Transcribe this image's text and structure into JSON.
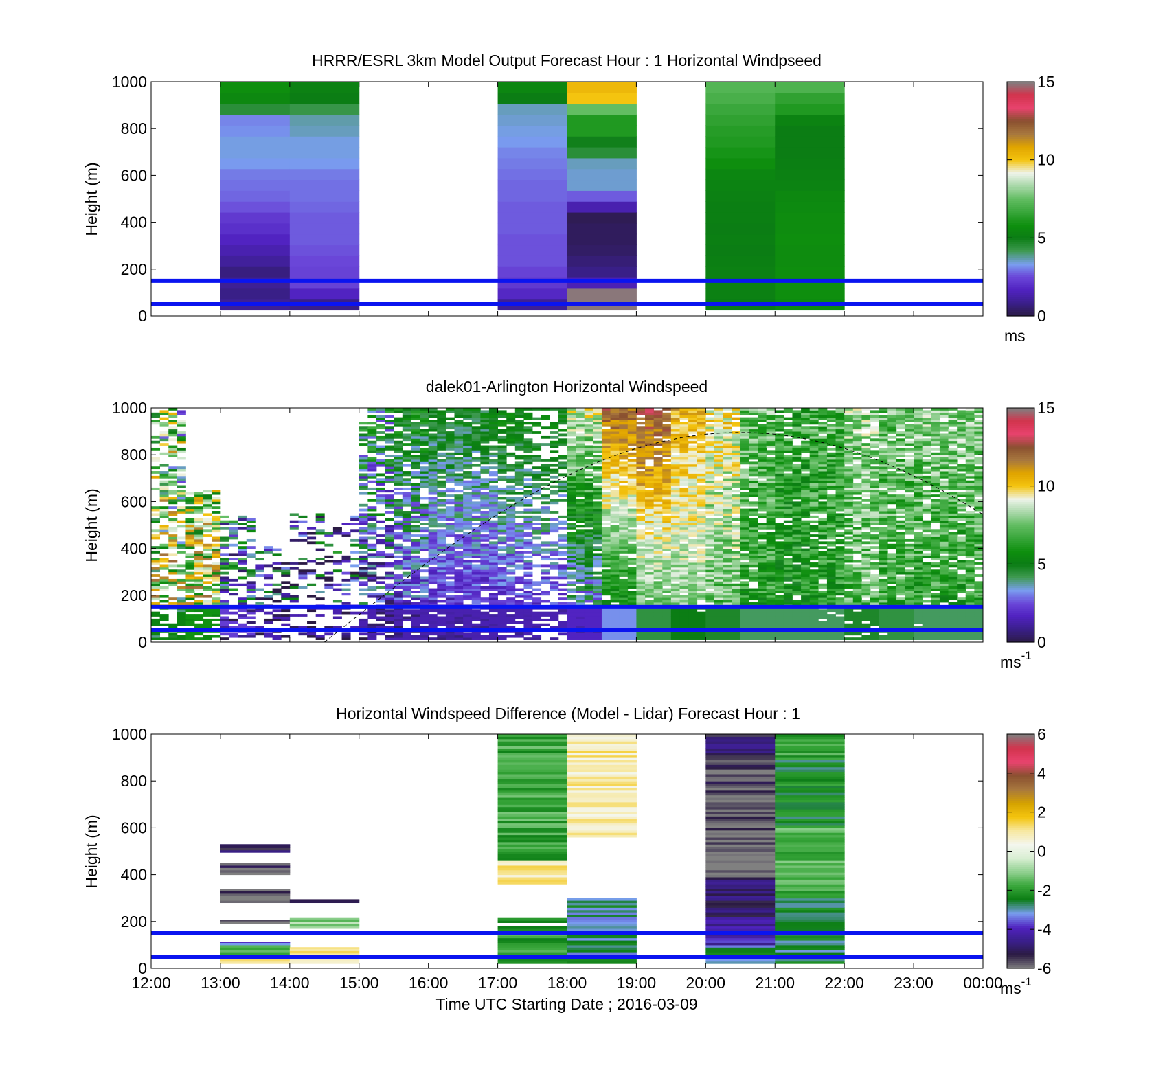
{
  "colormaps": {
    "speed": [
      "#2b1b43",
      "#3a1f8a",
      "#5022c0",
      "#6a46d8",
      "#7a9ef0",
      "#3f9a52",
      "#0b7d14",
      "#0e8f0e",
      "#38a63a",
      "#62bd62",
      "#a8d8a8",
      "#eef3ea",
      "#f4c40f",
      "#e0a400",
      "#a8783e",
      "#8a5030",
      "#e8436e",
      "#d2344d",
      "#808080"
    ],
    "diff": [
      "#808080",
      "#2b1b43",
      "#3a1f8a",
      "#5022c0",
      "#7a9ef0",
      "#0b7d14",
      "#38a63a",
      "#8fd08f",
      "#d8eed2",
      "#f4f6ee",
      "#f7e8a0",
      "#f4c40f",
      "#d5a200",
      "#a8783e",
      "#8a5030",
      "#e8436e",
      "#d2344d",
      "#808080"
    ]
  },
  "x_axis": {
    "ticks": [
      "12:00",
      "13:00",
      "14:00",
      "15:00",
      "16:00",
      "17:00",
      "18:00",
      "19:00",
      "20:00",
      "21:00",
      "22:00",
      "23:00",
      "00:00"
    ],
    "label": "Time UTC  Starting Date ; 2016-03-09"
  },
  "chart_data": [
    {
      "type": "heatmap",
      "title": "HRRR/ESRL 3km Model Output   Forecast Hour : 1 Horizontal Windpseed",
      "ylabel": "Height (m)",
      "ylim": [
        0,
        1000
      ],
      "yticks": [
        "0",
        "200",
        "400",
        "600",
        "800",
        "1000"
      ],
      "clim": [
        0,
        15
      ],
      "cticks": [
        "0",
        "5",
        "10",
        "15"
      ],
      "cunit": "ms",
      "cunit_sup": "",
      "reference_lines_m": [
        50,
        150
      ],
      "columns": [
        {
          "x_start": 13.0,
          "x_end": 14.0,
          "values_bottom_to_top": [
            1.0,
            0.8,
            1.0,
            0.7,
            1.1,
            1.4,
            1.7,
            2.0,
            2.2,
            2.6,
            2.8,
            2.9,
            3.0,
            3.3,
            3.4,
            3.4,
            3.2,
            3.1,
            4.5,
            5.5,
            5.8
          ]
        },
        {
          "x_start": 14.0,
          "x_end": 15.0,
          "values_bottom_to_top": [
            0.8,
            1.7,
            2.4,
            2.4,
            2.5,
            2.6,
            2.7,
            2.7,
            2.7,
            2.8,
            2.9,
            2.9,
            3.0,
            3.3,
            3.4,
            3.4,
            3.6,
            3.7,
            4.3,
            5.0,
            5.2
          ]
        },
        {
          "x_start": 17.0,
          "x_end": 18.0,
          "values_bottom_to_top": [
            1.0,
            1.8,
            2.2,
            2.4,
            2.6,
            2.6,
            2.6,
            2.7,
            2.7,
            2.7,
            2.8,
            2.8,
            2.9,
            3.0,
            3.1,
            3.3,
            3.4,
            3.5,
            3.6,
            5.0,
            5.4
          ]
        },
        {
          "x_start": 18.0,
          "x_end": 19.0,
          "values_bottom_to_top": [
            14.9,
            14.9,
            1.5,
            0.8,
            0.6,
            0.4,
            0.3,
            0.3,
            0.2,
            1.4,
            2.7,
            3.5,
            3.5,
            3.6,
            4.5,
            4.9,
            6.2,
            6.2,
            7.5,
            10.0,
            10.3
          ]
        },
        {
          "x_start": 20.0,
          "x_end": 21.0,
          "values_bottom_to_top": [
            5.0,
            5.2,
            5.2,
            5.2,
            5.1,
            5.0,
            5.1,
            5.0,
            5.1,
            5.1,
            5.2,
            5.3,
            5.4,
            5.8,
            6.0,
            6.2,
            6.3,
            6.5,
            6.7,
            7.0,
            7.2
          ]
        },
        {
          "x_start": 21.0,
          "x_end": 22.0,
          "values_bottom_to_top": [
            5.6,
            5.8,
            5.8,
            5.8,
            5.7,
            5.7,
            5.8,
            5.7,
            5.7,
            5.6,
            5.5,
            5.3,
            5.2,
            5.1,
            5.0,
            5.0,
            5.0,
            5.3,
            6.2,
            6.5,
            7.1
          ]
        }
      ]
    },
    {
      "type": "heatmap",
      "title": "dalek01-Arlington  Horizontal Windspeed",
      "ylabel": "Height (m)",
      "ylim": [
        0,
        1000
      ],
      "yticks": [
        "0",
        "200",
        "400",
        "600",
        "800",
        "1000"
      ],
      "clim": [
        0,
        15
      ],
      "cticks": [
        "0",
        "5",
        "10",
        "15"
      ],
      "cunit": "ms",
      "cunit_sup": "-1",
      "reference_lines_m": [
        50,
        150
      ],
      "curve_note": "dashed arc peaking near 900 m at about 20:30",
      "profiles": [
        {
          "t_start": 12.0,
          "t_end": 12.5,
          "top_m": 1000,
          "base": 8.0,
          "trend": -1.5,
          "amp": 4.5,
          "fill": 0.55
        },
        {
          "t_start": 12.5,
          "t_end": 13.0,
          "top_m": 650,
          "base": 9.0,
          "trend": -2.0,
          "amp": 3.5,
          "fill": 0.75
        },
        {
          "t_start": 13.0,
          "t_end": 13.5,
          "top_m": 540,
          "base": 3.0,
          "trend": 2.0,
          "amp": 3.5,
          "fill": 0.55
        },
        {
          "t_start": 13.5,
          "t_end": 14.0,
          "top_m": 420,
          "base": 1.5,
          "trend": 3.0,
          "amp": 3.5,
          "fill": 0.4
        },
        {
          "t_start": 14.0,
          "t_end": 14.5,
          "top_m": 560,
          "base": 1.5,
          "trend": 3.0,
          "amp": 3.5,
          "fill": 0.3
        },
        {
          "t_start": 14.5,
          "t_end": 15.0,
          "top_m": 540,
          "base": 1.5,
          "trend": 4.0,
          "amp": 3.5,
          "fill": 0.35
        },
        {
          "t_start": 15.0,
          "t_end": 15.5,
          "top_m": 1000,
          "base": 1.5,
          "trend": 3.5,
          "amp": 2.5,
          "fill": 0.6
        },
        {
          "t_start": 15.5,
          "t_end": 16.0,
          "top_m": 1000,
          "base": 1.5,
          "trend": 4.0,
          "amp": 1.5,
          "fill": 0.85
        },
        {
          "t_start": 16.0,
          "t_end": 16.5,
          "top_m": 1000,
          "base": 1.5,
          "trend": 3.5,
          "amp": 1.0,
          "fill": 0.92
        },
        {
          "t_start": 16.5,
          "t_end": 17.0,
          "top_m": 1000,
          "base": 1.5,
          "trend": 3.5,
          "amp": 1.0,
          "fill": 0.92
        },
        {
          "t_start": 17.0,
          "t_end": 17.5,
          "top_m": 1000,
          "base": 1.5,
          "trend": 4.0,
          "amp": 1.0,
          "fill": 0.85
        },
        {
          "t_start": 17.5,
          "t_end": 18.0,
          "top_m": 1000,
          "base": 1.5,
          "trend": 4.0,
          "amp": 1.0,
          "fill": 0.55
        },
        {
          "t_start": 18.0,
          "t_end": 18.5,
          "top_m": 1000,
          "base": 2.0,
          "trend": 7.0,
          "amp": 1.5,
          "fill": 0.98
        },
        {
          "t_start": 18.5,
          "t_end": 19.0,
          "top_m": 1000,
          "base": 4.5,
          "trend": 7.5,
          "amp": 1.0,
          "fill": 0.99
        },
        {
          "t_start": 19.0,
          "t_end": 19.5,
          "top_m": 1000,
          "base": 6.5,
          "trend": 6.0,
          "amp": 1.0,
          "fill": 0.99
        },
        {
          "t_start": 19.5,
          "t_end": 20.0,
          "top_m": 1000,
          "base": 7.5,
          "trend": 3.0,
          "amp": 1.0,
          "fill": 0.99
        },
        {
          "t_start": 20.0,
          "t_end": 20.5,
          "top_m": 1000,
          "base": 7.0,
          "trend": 2.5,
          "amp": 1.5,
          "fill": 0.99
        },
        {
          "t_start": 20.5,
          "t_end": 21.0,
          "top_m": 1000,
          "base": 6.0,
          "trend": 1.5,
          "amp": 1.5,
          "fill": 0.99
        },
        {
          "t_start": 21.0,
          "t_end": 21.5,
          "top_m": 1000,
          "base": 6.0,
          "trend": 0.5,
          "amp": 1.5,
          "fill": 0.99
        },
        {
          "t_start": 21.5,
          "t_end": 22.0,
          "top_m": 1000,
          "base": 6.0,
          "trend": 1.0,
          "amp": 1.5,
          "fill": 0.95
        },
        {
          "t_start": 22.0,
          "t_end": 22.5,
          "top_m": 1000,
          "base": 7.0,
          "trend": 1.0,
          "amp": 1.5,
          "fill": 0.9
        },
        {
          "t_start": 22.5,
          "t_end": 23.0,
          "top_m": 1000,
          "base": 6.5,
          "trend": 1.0,
          "amp": 1.5,
          "fill": 0.98
        },
        {
          "t_start": 23.0,
          "t_end": 23.5,
          "top_m": 1000,
          "base": 6.0,
          "trend": 2.0,
          "amp": 1.5,
          "fill": 0.98
        },
        {
          "t_start": 23.5,
          "t_end": 24.0,
          "top_m": 1000,
          "base": 6.0,
          "trend": 2.0,
          "amp": 1.5,
          "fill": 0.98
        }
      ]
    },
    {
      "type": "heatmap",
      "title": "Horizontal Windspeed Difference (Model - Lidar) Forecast Hour : 1",
      "ylabel": "Height (m)",
      "ylim": [
        0,
        1000
      ],
      "yticks": [
        "0",
        "200",
        "400",
        "600",
        "800",
        "1000"
      ],
      "clim": [
        -6,
        6
      ],
      "cticks": [
        "-6",
        "-4",
        "-2",
        "0",
        "2",
        "4",
        "6"
      ],
      "cunit": "ms",
      "cunit_sup": "-1",
      "reference_lines_m": [
        50,
        150
      ],
      "segments": [
        {
          "x_start": 13.0,
          "x_end": 14.0,
          "y0": 20,
          "y1": 60,
          "v": 1.0
        },
        {
          "x_start": 13.0,
          "x_end": 14.0,
          "y0": 60,
          "y1": 100,
          "v": -1.5
        },
        {
          "x_start": 13.0,
          "x_end": 14.0,
          "y0": 100,
          "y1": 112,
          "v": -3.5
        },
        {
          "x_start": 13.0,
          "x_end": 14.0,
          "y0": 192,
          "y1": 206,
          "v": -6.0
        },
        {
          "x_start": 13.0,
          "x_end": 14.0,
          "y0": 280,
          "y1": 320,
          "v": -6.0
        },
        {
          "x_start": 13.0,
          "x_end": 14.0,
          "y0": 320,
          "y1": 340,
          "v": -5.5
        },
        {
          "x_start": 13.0,
          "x_end": 14.0,
          "y0": 400,
          "y1": 430,
          "v": -6.0
        },
        {
          "x_start": 13.0,
          "x_end": 14.0,
          "y0": 430,
          "y1": 450,
          "v": -5.5
        },
        {
          "x_start": 13.0,
          "x_end": 14.0,
          "y0": 495,
          "y1": 530,
          "v": -5.2
        },
        {
          "x_start": 14.0,
          "x_end": 15.0,
          "y0": 20,
          "y1": 55,
          "v": 0.5
        },
        {
          "x_start": 14.0,
          "x_end": 15.0,
          "y0": 55,
          "y1": 90,
          "v": 1.0
        },
        {
          "x_start": 14.0,
          "x_end": 15.0,
          "y0": 170,
          "y1": 215,
          "v": -1.0
        },
        {
          "x_start": 14.0,
          "x_end": 15.0,
          "y0": 280,
          "y1": 295,
          "v": -5.0
        },
        {
          "x_start": 17.0,
          "x_end": 18.0,
          "y0": 20,
          "y1": 180,
          "v": -2.0
        },
        {
          "x_start": 17.0,
          "x_end": 18.0,
          "y0": 195,
          "y1": 215,
          "v": -2.3
        },
        {
          "x_start": 17.0,
          "x_end": 18.0,
          "y0": 360,
          "y1": 460,
          "v": 0.9
        },
        {
          "x_start": 17.0,
          "x_end": 18.0,
          "y0": 460,
          "y1": 1000,
          "v": -1.8
        },
        {
          "x_start": 18.0,
          "x_end": 19.0,
          "y0": 20,
          "y1": 300,
          "v": -2.8
        },
        {
          "x_start": 18.0,
          "x_end": 19.0,
          "y0": 560,
          "y1": 1000,
          "v": 0.9
        },
        {
          "x_start": 20.0,
          "x_end": 21.0,
          "y0": 20,
          "y1": 100,
          "v": -2.8
        },
        {
          "x_start": 20.0,
          "x_end": 21.0,
          "y0": 100,
          "y1": 220,
          "v": -4.2
        },
        {
          "x_start": 20.0,
          "x_end": 21.0,
          "y0": 220,
          "y1": 390,
          "v": -4.9
        },
        {
          "x_start": 20.0,
          "x_end": 21.0,
          "y0": 390,
          "y1": 570,
          "v": -6.0
        },
        {
          "x_start": 20.0,
          "x_end": 21.0,
          "y0": 570,
          "y1": 920,
          "v": -5.6
        },
        {
          "x_start": 20.0,
          "x_end": 21.0,
          "y0": 920,
          "y1": 1000,
          "v": -5.0
        },
        {
          "x_start": 21.0,
          "x_end": 22.0,
          "y0": 20,
          "y1": 300,
          "v": -2.6
        },
        {
          "x_start": 21.0,
          "x_end": 22.0,
          "y0": 300,
          "y1": 600,
          "v": -1.6
        },
        {
          "x_start": 21.0,
          "x_end": 22.0,
          "y0": 600,
          "y1": 900,
          "v": -2.3
        },
        {
          "x_start": 21.0,
          "x_end": 22.0,
          "y0": 900,
          "y1": 1000,
          "v": -1.8
        }
      ]
    }
  ]
}
